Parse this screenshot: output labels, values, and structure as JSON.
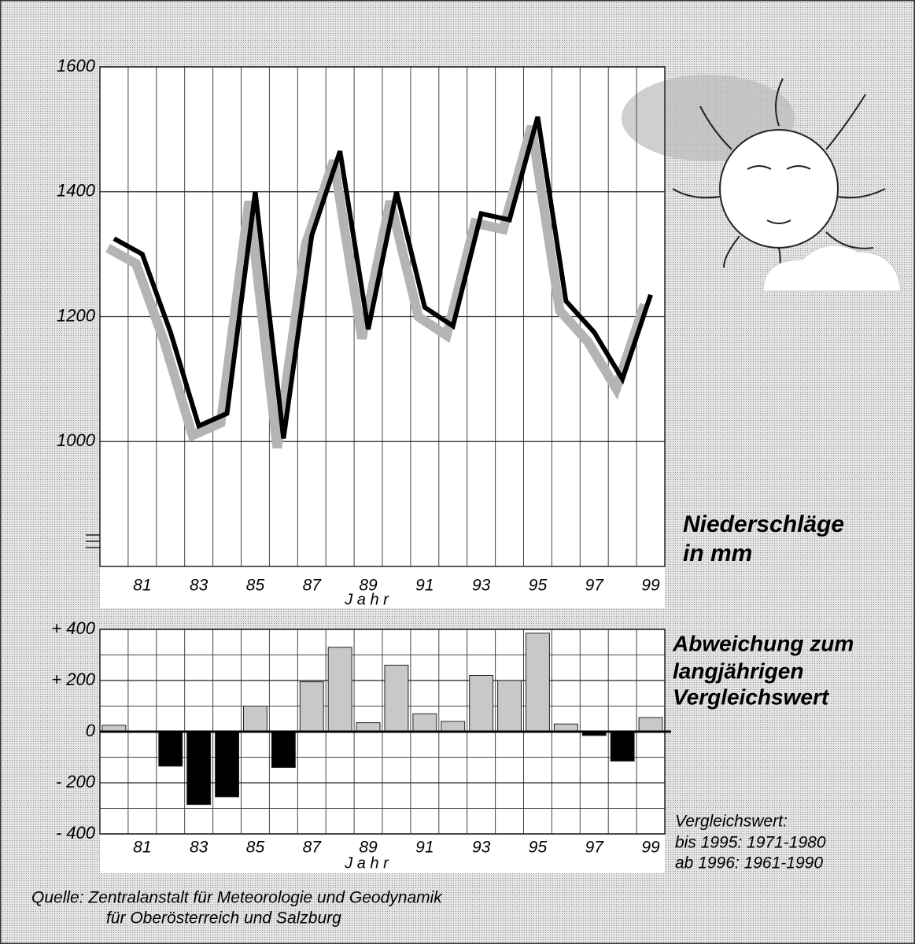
{
  "chart_data": [
    {
      "type": "line",
      "title_lines": [
        "Niederschläge",
        "in   mm"
      ],
      "x_label": "J a h r",
      "categories": [
        null,
        "81",
        null,
        "83",
        null,
        "85",
        null,
        "87",
        null,
        "89",
        null,
        "91",
        null,
        "93",
        null,
        "95",
        null,
        "97",
        null,
        "99"
      ],
      "series": [
        {
          "color": "#000000",
          "shadow_color": "#b4b4b4",
          "values": [
            1325,
            1300,
            1175,
            1025,
            1045,
            1400,
            1005,
            1330,
            1465,
            1180,
            1400,
            1215,
            1185,
            1365,
            1355,
            1520,
            1225,
            1175,
            1100,
            1235
          ]
        }
      ],
      "ylim": [
        800,
        1600
      ],
      "yticks": [
        1000,
        1200,
        1400,
        1600
      ],
      "grid": true
    },
    {
      "type": "bar",
      "title_lines": [
        "Abweichung zum",
        "langjährigen",
        "Vergleichswert"
      ],
      "x_label": "J a h r",
      "categories": [
        null,
        "81",
        null,
        "83",
        null,
        "85",
        null,
        "87",
        null,
        "89",
        null,
        "91",
        null,
        "93",
        null,
        "95",
        null,
        "97",
        null,
        "99"
      ],
      "values": [
        25,
        0,
        -135,
        -285,
        -255,
        100,
        -140,
        195,
        330,
        35,
        260,
        70,
        40,
        220,
        200,
        385,
        30,
        -15,
        -115,
        55
      ],
      "positive_color": "#c8c8c8",
      "negative_color": "#000000",
      "ylim": [
        -400,
        400
      ],
      "yticks": [
        {
          "value": 400,
          "label": "+ 400"
        },
        {
          "value": 200,
          "label": "+ 200"
        },
        0,
        {
          "value": -200,
          "label": "- 200"
        },
        {
          "value": -400,
          "label": "- 400"
        }
      ],
      "minor_yticks": [
        300,
        100,
        -100,
        -300
      ],
      "grid": true
    }
  ],
  "notes": [
    "Vergleichswert:",
    "bis 1995: 1971-1980",
    "ab 1996: 1961-1990"
  ],
  "source": [
    "Quelle: Zentralanstalt für Meteorologie und Geodynamik",
    "für Oberösterreich und Salzburg"
  ]
}
